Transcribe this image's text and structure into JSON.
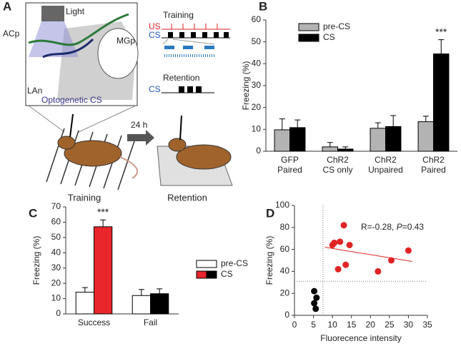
{
  "diagram": {
    "panel_label": "A",
    "light": "Light",
    "region_acp": "ACp",
    "region_mgp": "MGp",
    "region_lan": "LAn",
    "caption": "Optogenetic CS",
    "protocol_training": "Training",
    "us": "US",
    "cs_training": "CS",
    "protocol_retention": "Retention",
    "cs_retention": "CS",
    "delay": "24 h",
    "stage_training": "Training",
    "stage_retention": "Retention"
  },
  "chart_data": [
    {
      "type": "bar",
      "panel_label": "B",
      "y_label": "Freezing (%)",
      "categories": [
        [
          "GFP",
          "Paired"
        ],
        [
          "ChR2",
          "CS only"
        ],
        [
          "ChR2",
          "Unpaired"
        ],
        [
          "ChR2",
          "Paired"
        ]
      ],
      "series": [
        {
          "name": "pre-CS",
          "color": "#b3b3b3",
          "values": [
            9.8,
            2,
            10.5,
            13.5
          ],
          "errors": [
            5,
            2,
            2.5,
            2.5
          ]
        },
        {
          "name": "CS",
          "color": "#000000",
          "values": [
            10.8,
            1,
            11.3,
            44.5
          ],
          "errors": [
            3.5,
            1,
            5,
            6.5
          ]
        }
      ],
      "ylim": [
        0,
        60
      ],
      "yticks": [
        0,
        10,
        20,
        30,
        40,
        50,
        60
      ],
      "annotation": "***"
    },
    {
      "type": "bar",
      "panel_label": "C",
      "y_label": "Freezing (%)",
      "categories": [
        "Success",
        "Fail"
      ],
      "series": [
        {
          "name": "pre-CS",
          "color": "#ffffff",
          "values": [
            14.2,
            12
          ],
          "errors": [
            3,
            4
          ]
        },
        {
          "name": "CS",
          "colors": [
            "#e8262b",
            "#000000"
          ],
          "values": [
            57,
            13.2
          ],
          "errors": [
            4.5,
            3.2
          ]
        }
      ],
      "ylim": [
        0,
        70
      ],
      "yticks": [
        0,
        10,
        20,
        30,
        40,
        50,
        60,
        70
      ],
      "annotation": "***"
    },
    {
      "type": "scatter",
      "panel_label": "D",
      "x_label": "Fluorecence intensity",
      "y_label": "Freezing (%)",
      "series": [
        {
          "color": "#e02424",
          "x": [
            10,
            10.5,
            11.5,
            12,
            13,
            13.5,
            14.5,
            22,
            25.5,
            30
          ],
          "y": [
            64,
            66,
            42,
            67,
            82,
            46,
            64,
            40,
            50,
            59
          ]
        },
        {
          "color": "#000000",
          "x": [
            5.2,
            5.8,
            5.2,
            5.6
          ],
          "y": [
            22,
            16,
            11,
            6
          ]
        }
      ],
      "trend_line": {
        "color": "#e02424",
        "x": [
          8,
          31
        ],
        "y": [
          62,
          49
        ]
      },
      "ref_x": 7.5,
      "ref_y": 31,
      "annotation": [
        "R=-0.28, ",
        "P",
        "=0.43"
      ],
      "xlim": [
        0,
        35
      ],
      "xticks": [
        0,
        5,
        10,
        15,
        20,
        25,
        30,
        35
      ],
      "ylim": [
        0,
        100
      ],
      "yticks": [
        0,
        20,
        40,
        60,
        80,
        100
      ]
    }
  ]
}
